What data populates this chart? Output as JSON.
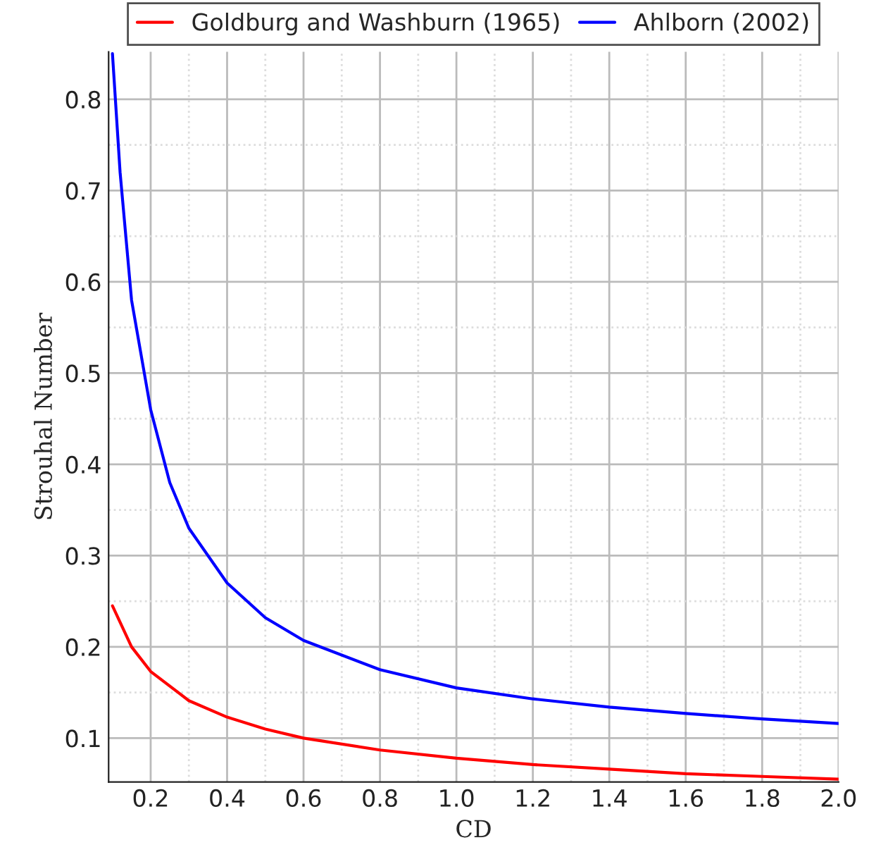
{
  "chart_data": {
    "type": "line",
    "xlabel": "CD",
    "ylabel": "Strouhal Number",
    "xlim": [
      0.09,
      2.0
    ],
    "ylim": [
      0.052,
      0.852
    ],
    "xticks": [
      {
        "value": 0.2,
        "label": "0.2"
      },
      {
        "value": 0.3,
        "label": null
      },
      {
        "value": 0.4,
        "label": "0.4"
      },
      {
        "value": 0.5,
        "label": null
      },
      {
        "value": 0.6,
        "label": "0.6"
      },
      {
        "value": 0.7,
        "label": null
      },
      {
        "value": 0.8,
        "label": "0.8"
      },
      {
        "value": 0.9,
        "label": null
      },
      {
        "value": 1.0,
        "label": "1.0"
      },
      {
        "value": 1.1,
        "label": null
      },
      {
        "value": 1.2,
        "label": "1.2"
      },
      {
        "value": 1.3,
        "label": null
      },
      {
        "value": 1.4,
        "label": "1.4"
      },
      {
        "value": 1.5,
        "label": null
      },
      {
        "value": 1.6,
        "label": "1.6"
      },
      {
        "value": 1.7,
        "label": null
      },
      {
        "value": 1.8,
        "label": "1.8"
      },
      {
        "value": 1.9,
        "label": null
      },
      {
        "value": 2.0,
        "label": "2.0"
      }
    ],
    "yticks": [
      {
        "value": 0.1,
        "label": "0.1"
      },
      {
        "value": 0.15,
        "label": null
      },
      {
        "value": 0.2,
        "label": "0.2"
      },
      {
        "value": 0.25,
        "label": null
      },
      {
        "value": 0.3,
        "label": "0.3"
      },
      {
        "value": 0.35,
        "label": null
      },
      {
        "value": 0.4,
        "label": "0.4"
      },
      {
        "value": 0.45,
        "label": null
      },
      {
        "value": 0.5,
        "label": "0.5"
      },
      {
        "value": 0.55,
        "label": null
      },
      {
        "value": 0.6,
        "label": "0.6"
      },
      {
        "value": 0.65,
        "label": null
      },
      {
        "value": 0.7,
        "label": "0.7"
      },
      {
        "value": 0.75,
        "label": null
      },
      {
        "value": 0.8,
        "label": "0.8"
      }
    ],
    "grid": true,
    "legend": "top",
    "marker": "none",
    "line_style": "solid",
    "series": [
      {
        "name": "Goldburg and Washburn (1965)",
        "color": "#ff0000",
        "x": [
          0.1,
          0.15,
          0.2,
          0.3,
          0.4,
          0.5,
          0.6,
          0.8,
          1.0,
          1.2,
          1.4,
          1.6,
          1.8,
          2.0
        ],
        "values": [
          0.245,
          0.2,
          0.173,
          0.141,
          0.123,
          0.11,
          0.1,
          0.087,
          0.078,
          0.071,
          0.066,
          0.061,
          0.058,
          0.055
        ]
      },
      {
        "name": "Ahlborn (2002)",
        "color": "#0000ff",
        "x": [
          0.1,
          0.12,
          0.15,
          0.2,
          0.25,
          0.3,
          0.4,
          0.5,
          0.6,
          0.8,
          1.0,
          1.2,
          1.4,
          1.6,
          1.8,
          2.0
        ],
        "values": [
          0.85,
          0.72,
          0.58,
          0.46,
          0.38,
          0.33,
          0.27,
          0.232,
          0.207,
          0.175,
          0.155,
          0.143,
          0.134,
          0.127,
          0.121,
          0.116
        ]
      }
    ]
  }
}
